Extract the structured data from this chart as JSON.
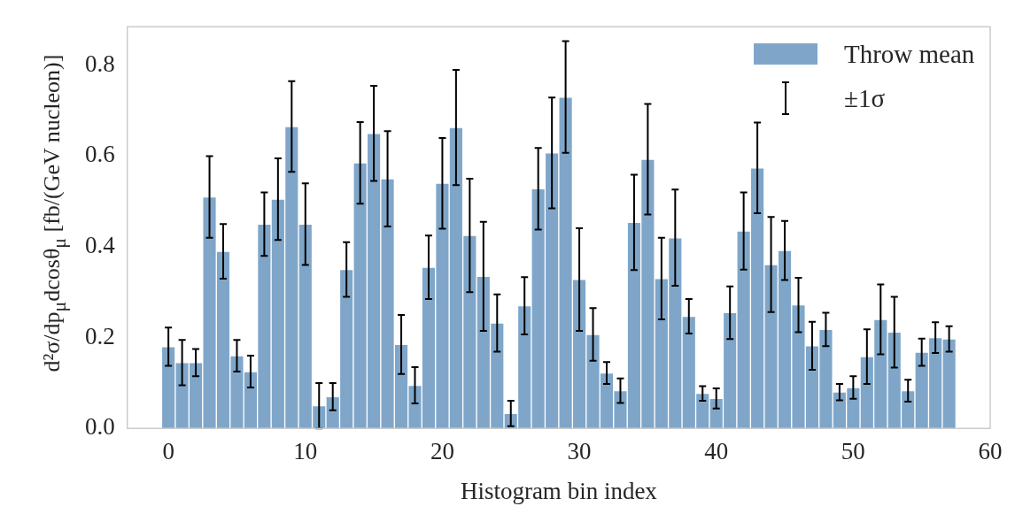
{
  "chart_data": {
    "type": "histogram",
    "xlabel": "Histogram bin index",
    "ylabel": "d²σ/dp$_{μ}$dcosθ$_{μ}$ [fb/(GeV nucleon)]",
    "bins": [
      -0.5,
      0.5,
      1.5,
      2.5,
      3.5,
      4.5,
      5.5,
      6.5,
      7.5,
      8.5,
      9.5,
      10.5,
      11.5,
      12.5,
      13.5,
      14.5,
      15.5,
      16.5,
      17.5,
      18.5,
      19.5,
      20.5,
      21.5,
      22.5,
      23.5,
      24.5,
      25.5,
      26.5,
      27.5,
      28.5,
      29.5,
      30.5,
      31.5,
      32.5,
      33.5,
      34.5,
      35.5,
      36.5,
      37.5,
      38.5,
      39.5,
      40.5,
      41.5,
      42.5,
      43.5,
      44.5,
      45.5,
      46.5,
      47.5,
      48.5,
      49.5,
      50.5,
      51.5,
      52.5,
      53.5,
      54.5,
      55.5,
      56.5,
      57.5
    ],
    "series": [
      {
        "name": "Throw mean",
        "color": "#7fa6c9",
        "values": [
          0.18,
          0.145,
          0.145,
          0.51,
          0.39,
          0.16,
          0.125,
          0.45,
          0.505,
          0.665,
          0.45,
          0.05,
          0.07,
          0.35,
          0.585,
          0.65,
          0.55,
          0.185,
          0.095,
          0.355,
          0.54,
          0.663,
          0.425,
          0.335,
          0.232,
          0.033,
          0.27,
          0.528,
          0.607,
          0.73,
          0.328,
          0.207,
          0.122,
          0.083,
          0.454,
          0.593,
          0.33,
          0.42,
          0.247,
          0.077,
          0.066,
          0.255,
          0.435,
          0.574,
          0.361,
          0.392,
          0.272,
          0.182,
          0.218,
          0.08,
          0.09,
          0.158,
          0.24,
          0.212,
          0.083,
          0.168,
          0.2,
          0.197
        ],
        "errors": [
          0.042,
          0.05,
          0.03,
          0.09,
          0.06,
          0.035,
          0.035,
          0.07,
          0.09,
          0.1,
          0.09,
          0.05,
          0.03,
          0.06,
          0.09,
          0.105,
          0.105,
          0.065,
          0.04,
          0.07,
          0.1,
          0.127,
          0.125,
          0.12,
          0.063,
          0.028,
          0.063,
          0.09,
          0.122,
          0.123,
          0.113,
          0.058,
          0.024,
          0.027,
          0.105,
          0.122,
          0.09,
          0.106,
          0.038,
          0.016,
          0.022,
          0.058,
          0.085,
          0.1,
          0.105,
          0.065,
          0.06,
          0.053,
          0.037,
          0.018,
          0.025,
          0.06,
          0.077,
          0.078,
          0.024,
          0.03,
          0.034,
          0.028
        ]
      }
    ],
    "xlim": [
      -3,
      60
    ],
    "xticks": [
      0,
      10,
      20,
      30,
      40,
      50,
      60
    ],
    "ylim": [
      0,
      0.885
    ],
    "yticks": [
      {
        "value": 0,
        "label": "0.0"
      },
      {
        "value": 0.2,
        "label": "0.2"
      },
      {
        "value": 0.4,
        "label": "0.4"
      },
      {
        "value": 0.6,
        "label": "0.6"
      },
      {
        "value": 0.8,
        "label": "0.8"
      }
    ],
    "legend": "top right",
    "annotations": [
      "±1σ"
    ]
  }
}
